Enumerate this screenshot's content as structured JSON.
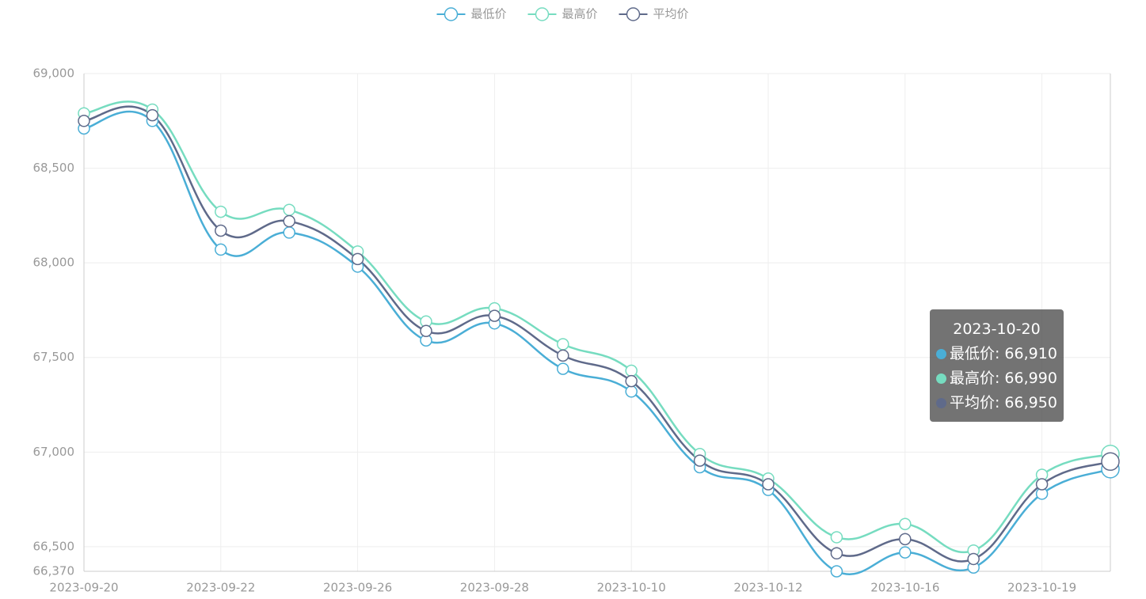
{
  "chart_data": {
    "type": "line",
    "categories": [
      "2023-09-20",
      null,
      "2023-09-22",
      null,
      "2023-09-26",
      null,
      "2023-09-28",
      null,
      "2023-10-10",
      null,
      "2023-10-12",
      null,
      "2023-10-16",
      null,
      "2023-10-19",
      "2023-10-20"
    ],
    "series": [
      {
        "name": "最低价",
        "color": "#4aaed6",
        "values": [
          68710,
          68750,
          68070,
          68160,
          67980,
          67590,
          67680,
          67440,
          67320,
          66920,
          66800,
          66370,
          66470,
          66390,
          66780,
          66910
        ],
        "value_labels": [
          null,
          null,
          null,
          null,
          null,
          null,
          null,
          null,
          null,
          null,
          null,
          null,
          null,
          null,
          null,
          "66,910"
        ]
      },
      {
        "name": "最高价",
        "color": "#76dcc0",
        "values": [
          68790,
          68810,
          68270,
          68280,
          68060,
          67690,
          67760,
          67570,
          67430,
          66990,
          66860,
          66550,
          66620,
          66480,
          66880,
          66990
        ],
        "value_labels": [
          null,
          null,
          null,
          null,
          null,
          null,
          null,
          null,
          null,
          null,
          null,
          null,
          null,
          null,
          null,
          "66,990"
        ]
      },
      {
        "name": "平均价",
        "color": "#5f6a8a",
        "values": [
          68750,
          68780,
          68170,
          68220,
          68020,
          67640,
          67720,
          67510,
          67375,
          66955,
          66830,
          66465,
          66540,
          66435,
          66830,
          66950
        ],
        "value_labels": [
          null,
          null,
          null,
          null,
          null,
          null,
          null,
          null,
          null,
          null,
          null,
          null,
          null,
          null,
          null,
          "66,950"
        ]
      }
    ],
    "ylim": [
      66370,
      69000
    ],
    "yticks": [
      {
        "value": 66370,
        "label": "66,370"
      },
      {
        "value": 66500,
        "label": "66,500"
      },
      {
        "value": 67000,
        "label": "67,000"
      },
      {
        "value": 67500,
        "label": "67,500"
      },
      {
        "value": 68000,
        "label": "68,000"
      },
      {
        "value": 68500,
        "label": "68,500"
      },
      {
        "value": 69000,
        "label": "69,000"
      }
    ],
    "grid": true,
    "legend": "top"
  }
}
